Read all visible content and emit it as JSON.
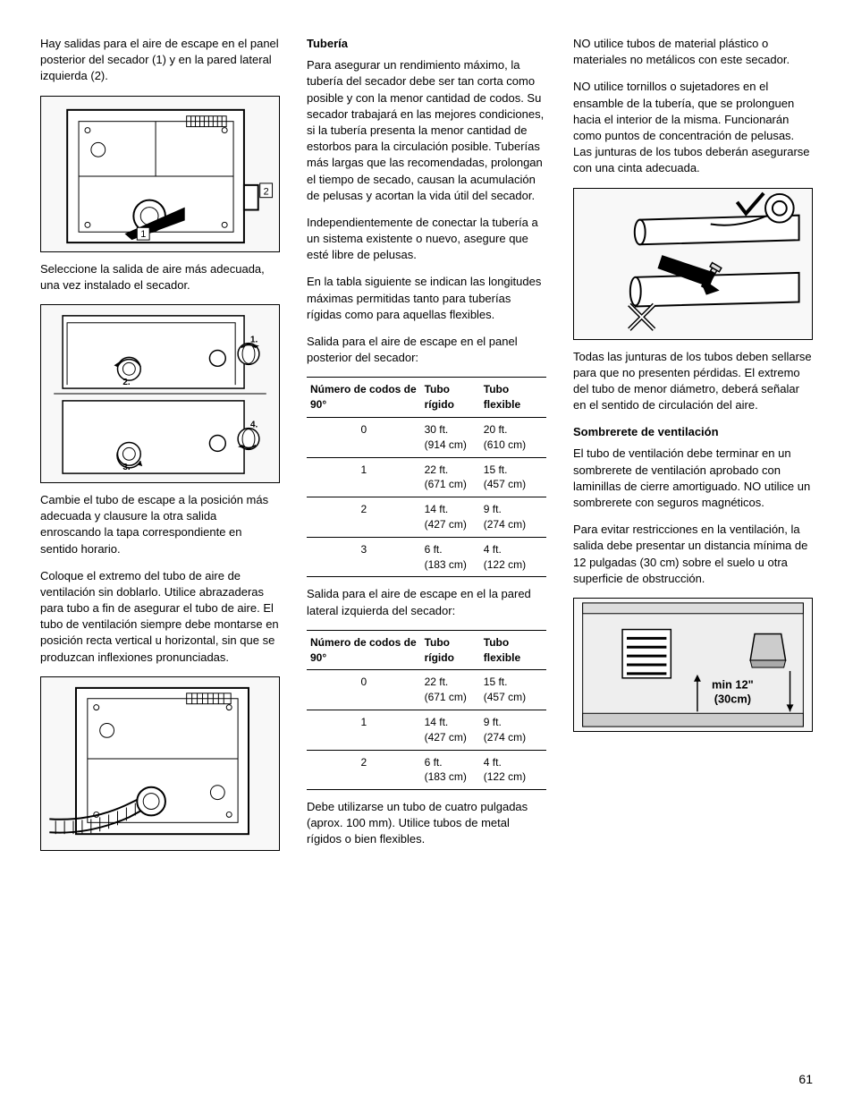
{
  "col1": {
    "p1": "Hay salidas para el aire de escape en el panel posterior del secador (1) y en la pared lateral izquierda (2).",
    "p2": "Seleccione la salida de aire más adecuada, una vez instalado el secador.",
    "p3": "Cambie el tubo de escape a la posición más adecuada y clausure la otra salida enroscando la tapa correspondiente en sentido horario.",
    "p4": "Coloque el extremo del tubo de aire de ventilación sin doblarlo. Utilice abrazaderas para tubo a fin de asegurar el tubo de aire. El tubo de ventilación siempre debe montarse en posición recta vertical u horizontal, sin que se produzcan inflexiones pronunciadas.",
    "fig1": {
      "label1": "1",
      "label2": "2"
    },
    "fig2": {
      "l1": "1.",
      "l2": "2.",
      "l3": "3.",
      "l4": "4."
    }
  },
  "col2": {
    "h1": "Tubería",
    "p1": "Para asegurar un rendimiento máximo, la tubería del secador debe ser tan corta como posible y con la menor cantidad de codos. Su secador trabajará en las mejores condiciones, si la tubería presenta la menor cantidad de estorbos para la circulación posible. Tuberías más largas que las recomendadas, prolongan el tiempo de secado, causan la acumulación de pelusas y acortan la vida útil del secador.",
    "p2": "Independientemente de conectar la tubería a un sistema existente o nuevo, asegure que esté libre de pelusas.",
    "p3": "En la tabla siguiente se indican las longitudes máximas permitidas tanto para tuberías rígidas como para aquellas flexibles.",
    "p4": "Salida para el aire de escape en el panel posterior del secador:",
    "p5": "Salida para el aire de escape en el la pared lateral izquierda del secador:",
    "p6": "Debe utilizarse un tubo de cuatro pulgadas (aprox. 100 mm). Utilice tubos de metal rígidos o bien flexibles.",
    "table1": {
      "headers": [
        "Número de codos de 90°",
        "Tubo rígido",
        "Tubo flexible"
      ],
      "rows": [
        [
          "0",
          "30 ft.\n(914 cm)",
          "20 ft.\n(610 cm)"
        ],
        [
          "1",
          "22 ft.\n(671 cm)",
          "15 ft.\n(457 cm)"
        ],
        [
          "2",
          "14 ft.\n(427 cm)",
          "9 ft.\n(274 cm)"
        ],
        [
          "3",
          "6 ft.\n(183 cm)",
          "4 ft.\n(122 cm)"
        ]
      ]
    },
    "table2": {
      "headers": [
        "Número de codos de 90°",
        "Tubo rígido",
        "Tubo flexible"
      ],
      "rows": [
        [
          "0",
          "22 ft.\n(671 cm)",
          "15 ft.\n(457 cm)"
        ],
        [
          "1",
          "14 ft.\n(427 cm)",
          "9 ft.\n(274 cm)"
        ],
        [
          "2",
          "6 ft.\n(183 cm)",
          "4 ft.\n(122 cm)"
        ]
      ]
    }
  },
  "col3": {
    "p1": "NO utilice tubos de material plástico o materiales no metálicos con este secador.",
    "p2": "NO utilice tornillos o sujetadores en el ensamble de la tubería, que se prolonguen hacia el interior de la misma. Funcionarán como puntos de concentración de pelusas. Las junturas de los tubos deberán asegurarse con una cinta adecuada.",
    "p3": "Todas las junturas de los tubos deben sellarse para que no presenten pérdidas. El extremo del tubo de menor diámetro, deberá señalar en el sentido de circulación del aire.",
    "h2": "Sombrerete de ventilación",
    "p4": "El tubo de ventilación debe terminar en un sombrerete de ventilación aprobado con laminillas de cierre amortiguado. NO utilice un sombrerete con seguros magnéticos.",
    "p5": "Para evitar restricciones en la ventilación, la salida debe presentar un distancia mínima de 12 pulgadas (30 cm) sobre el suelo u otra superficie de obstrucción.",
    "fig2": {
      "label": "min 12\"\n(30cm)"
    }
  },
  "pageNumber": "61"
}
